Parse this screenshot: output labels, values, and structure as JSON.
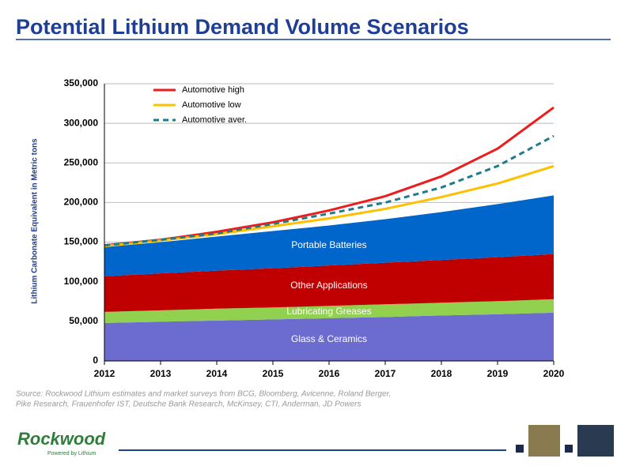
{
  "chart_data": {
    "type": "area",
    "title": "Potential Lithium Demand Volume Scenarios",
    "y_label": "Lithium Carbonate Equivalent in Metric tons",
    "x": [
      2012,
      2013,
      2014,
      2015,
      2016,
      2017,
      2018,
      2019,
      2020
    ],
    "xlim": [
      2012,
      2020
    ],
    "xticks": [
      2012,
      2013,
      2014,
      2015,
      2016,
      2017,
      2018,
      2019,
      2020
    ],
    "ylim": [
      0,
      350000
    ],
    "yticks": [
      0,
      {
        "value": 50000,
        "label": "50,000"
      },
      {
        "value": 100000,
        "label": "100,000"
      },
      {
        "value": 150000,
        "label": "150,000"
      },
      {
        "value": 200000,
        "label": "200,000"
      },
      {
        "value": 250000,
        "label": "250,000"
      },
      {
        "value": 300000,
        "label": "300,000"
      },
      {
        "value": 350000,
        "label": "350,000"
      }
    ],
    "grid": true,
    "legend": "top-left",
    "series": [
      {
        "name": "Glass & Ceramics",
        "color": "#6c6cd0",
        "stacked": true,
        "values": [
          48000,
          49500,
          51000,
          52500,
          54000,
          55500,
          57500,
          59000,
          61000
        ]
      },
      {
        "name": "Lubricating Greases",
        "color": "#92d050",
        "stacked": true,
        "values": [
          14000,
          14500,
          15000,
          15000,
          15500,
          16000,
          16000,
          16500,
          17000
        ]
      },
      {
        "name": "Other Applications",
        "color": "#c00000",
        "stacked": true,
        "values": [
          45000,
          46500,
          48000,
          49500,
          51000,
          52500,
          54000,
          55500,
          57000
        ]
      },
      {
        "name": "Portable Batteries",
        "color": "#0066cc",
        "stacked": true,
        "values": [
          37000,
          39500,
          43000,
          47000,
          50500,
          55000,
          60500,
          67000,
          74000
        ]
      },
      {
        "name": "Automotive high",
        "color": "#ee1c1c",
        "values": [
          146000,
          153000,
          163000,
          175000,
          190000,
          208000,
          233000,
          268000,
          320000
        ]
      },
      {
        "name": "Automotive low",
        "color": "#ffc000",
        "values": [
          145000,
          152000,
          160000,
          170000,
          180000,
          192000,
          207000,
          224000,
          246000
        ]
      },
      {
        "name": "Automotive aver.",
        "color": "#1f7a8c",
        "dashed": true,
        "values": [
          146000,
          153000,
          161000,
          173000,
          186000,
          200000,
          219000,
          246000,
          284000
        ]
      }
    ]
  },
  "source": [
    "Source: Rockwood Lithium estimates and market surveys from BCG, Bloomberg, Avicenne, Roland Berger,",
    "Pike Research, Frauenhofer IST, Deutsche Bank Research, McKinsey, CTI, Anderman, JD Powers"
  ],
  "logo": {
    "name": "Rockwood",
    "tagline": "Powered by Lithium"
  }
}
